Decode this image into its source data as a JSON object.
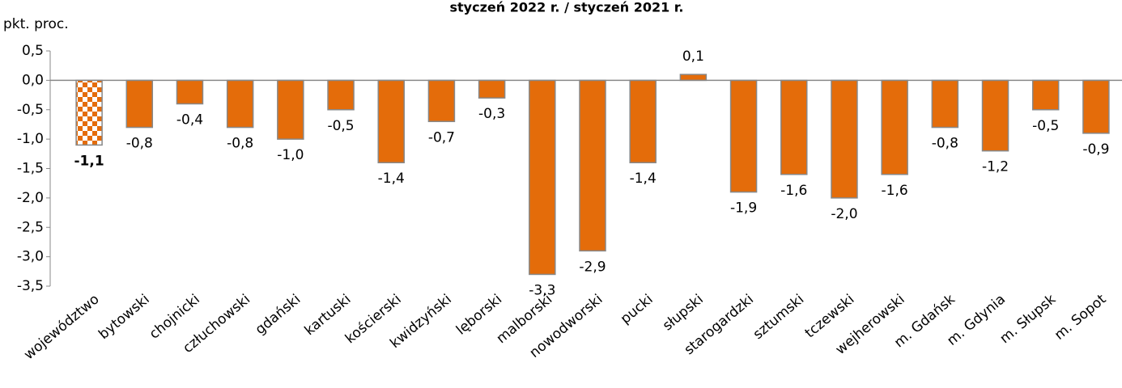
{
  "chart_data": {
    "type": "bar",
    "title": "styczeń 2022 r. / styczeń 2021 r.",
    "y_label": "pkt. proc.",
    "categories": [
      "województwo",
      "bytowski",
      "chojnicki",
      "człuchowski",
      "gdański",
      "kartuski",
      "kościerski",
      "kwidzyński",
      "lęborski",
      "malborski",
      "nowodworski",
      "pucki",
      "słupski",
      "starogardzki",
      "sztumski",
      "tczewski",
      "wejherowski",
      "m. Gdańsk",
      "m. Gdynia",
      "m. Słupsk",
      "m. Sopot"
    ],
    "values": [
      -1.1,
      -0.8,
      -0.4,
      -0.8,
      -1.0,
      -0.5,
      -1.4,
      -0.7,
      -0.3,
      -3.3,
      -2.9,
      -1.4,
      0.1,
      -1.9,
      -1.6,
      -2.0,
      -1.6,
      -0.8,
      -1.2,
      -0.5,
      -0.9
    ],
    "value_labels": [
      "-1,1",
      "-0,8",
      "-0,4",
      "-0,8",
      "-1,0",
      "-0,5",
      "-1,4",
      "-0,7",
      "-0,3",
      "-3,3",
      "-2,9",
      "-1,4",
      "0,1",
      "-1,9",
      "-1,6",
      "-2,0",
      "-1,6",
      "-0,8",
      "-1,2",
      "-0,5",
      "-0,9"
    ],
    "bar_fills": [
      "checkered",
      "solid",
      "solid",
      "solid",
      "solid",
      "solid",
      "solid",
      "solid",
      "solid",
      "solid",
      "solid",
      "solid",
      "solid",
      "solid",
      "solid",
      "solid",
      "solid",
      "solid",
      "solid",
      "solid",
      "solid"
    ],
    "color": "#e46c0a",
    "ylim": [
      -3.5,
      0.5
    ],
    "yticks": [
      {
        "value": 0.5,
        "label": "0,5"
      },
      {
        "value": 0.0,
        "label": "0,0"
      },
      {
        "value": -0.5,
        "label": "-0,5"
      },
      {
        "value": -1.0,
        "label": "-1,0"
      },
      {
        "value": -1.5,
        "label": "-1,5"
      },
      {
        "value": -2.0,
        "label": "-2,0"
      },
      {
        "value": -2.5,
        "label": "-2,5"
      },
      {
        "value": -3.0,
        "label": "-3,0"
      },
      {
        "value": -3.5,
        "label": "-3,5"
      }
    ],
    "grid": false
  }
}
